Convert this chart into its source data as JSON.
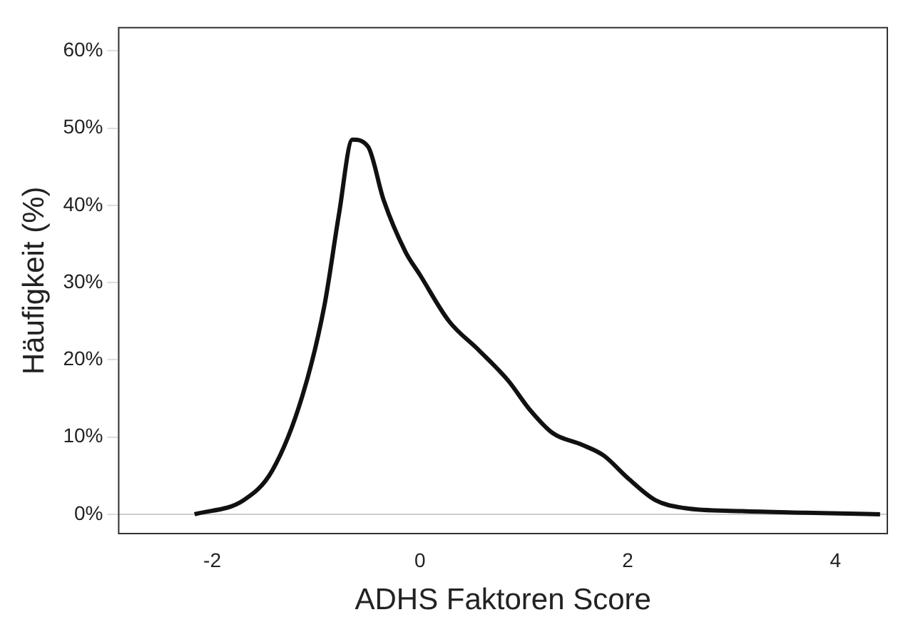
{
  "chart_data": {
    "type": "line",
    "xlabel": "ADHS Faktoren Score",
    "ylabel": "Häufigkeit (%)",
    "series": [
      {
        "color": "#111111",
        "x": [
          -2.17,
          -1.7,
          -1.42,
          -1.13,
          -0.92,
          -0.78,
          -0.65,
          -0.5,
          -0.35,
          -0.14,
          0,
          0.28,
          0.57,
          0.85,
          1.06,
          1.28,
          1.56,
          1.77,
          2,
          2.27,
          2.55,
          3.1,
          3.7,
          4.43
        ],
        "values": [
          0,
          1.8,
          5.7,
          15.4,
          27,
          38.8,
          48.5,
          47.6,
          40.7,
          34,
          31,
          25,
          21.2,
          17.3,
          13.5,
          10.5,
          9,
          7.6,
          4.7,
          1.8,
          0.8,
          0.4,
          0.2,
          0
        ]
      }
    ],
    "xlim": [
      -2.9,
      4.5
    ],
    "xticks": [
      -2,
      0,
      2,
      4
    ],
    "ylim": [
      -2.5,
      63
    ],
    "yticks": [
      {
        "value": 0,
        "label": "0%"
      },
      {
        "value": 10,
        "label": "10%"
      },
      {
        "value": 20,
        "label": "20%"
      },
      {
        "value": 30,
        "label": "30%"
      },
      {
        "value": 40,
        "label": "40%"
      },
      {
        "value": 50,
        "label": "50%"
      },
      {
        "value": 60,
        "label": "60%"
      }
    ],
    "ref_lines": [
      {
        "axis": "y",
        "value": 0,
        "color": "#cccccc"
      }
    ],
    "grid": false,
    "legend": false,
    "marker": "none",
    "line_style": "solid"
  }
}
